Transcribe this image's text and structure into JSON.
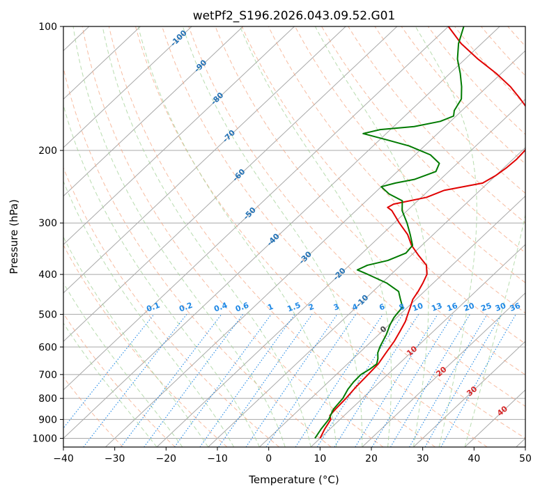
{
  "chart_data": {
    "type": "line",
    "title": "wetPf2_S196.2026.043.09.52.G01",
    "xlabel": "Temperature (°C)",
    "ylabel": "Pressure (hPa)",
    "xlim": [
      -40,
      50
    ],
    "ylim_pressure": [
      1050,
      100
    ],
    "log_y": true,
    "grid": true,
    "x_ticks": [
      -40,
      -30,
      -20,
      -10,
      0,
      10,
      20,
      30,
      40,
      50
    ],
    "y_ticks": [
      100,
      200,
      300,
      400,
      500,
      600,
      700,
      800,
      900,
      1000
    ],
    "skew_deg_per_decade": 85,
    "isotherm_labels": [
      -100,
      -90,
      -80,
      -70,
      -60,
      -50,
      -40,
      -30,
      -20,
      -10
    ],
    "isotherm_labels_text": [
      "-100",
      "-90",
      "-80",
      "-70",
      "-60",
      "-50",
      "-40",
      "-30",
      "-20",
      "-10"
    ],
    "mixing_ratio_labels": [
      0.1,
      0.2,
      0.4,
      0.6,
      1,
      1.5,
      2,
      3,
      4,
      6,
      8,
      10,
      13,
      16,
      20,
      25,
      30,
      36
    ],
    "mixing_ratio_labels_text": [
      "0.1",
      "0.2",
      "0.4",
      "0.6",
      "1",
      "1.5",
      "2",
      "3",
      "4",
      "6",
      "8",
      "10",
      "13",
      "16",
      "20",
      "25",
      "30",
      "36"
    ],
    "dry_adiabat_labels": [
      0,
      10,
      20,
      30,
      40
    ],
    "dry_adiabat_labels_text": [
      "0",
      "10",
      "20",
      "30",
      "40"
    ],
    "series": [
      {
        "role": "temperature",
        "color": "#e00000",
        "points": [
          {
            "p": 1000,
            "t": 10.0
          },
          {
            "p": 950,
            "t": 9.0
          },
          {
            "p": 900,
            "t": 8.2
          },
          {
            "p": 880,
            "t": 7.2
          },
          {
            "p": 850,
            "t": 7.0
          },
          {
            "p": 800,
            "t": 6.8
          },
          {
            "p": 750,
            "t": 6.4
          },
          {
            "p": 700,
            "t": 6.2
          },
          {
            "p": 660,
            "t": 6.0
          },
          {
            "p": 620,
            "t": 5.2
          },
          {
            "p": 580,
            "t": 4.4
          },
          {
            "p": 550,
            "t": 3.5
          },
          {
            "p": 520,
            "t": 2.5
          },
          {
            "p": 500,
            "t": 1.5
          },
          {
            "p": 480,
            "t": 0.5
          },
          {
            "p": 460,
            "t": -0.6
          },
          {
            "p": 440,
            "t": -1.2
          },
          {
            "p": 420,
            "t": -2.0
          },
          {
            "p": 400,
            "t": -3.0
          },
          {
            "p": 380,
            "t": -5.0
          },
          {
            "p": 360,
            "t": -8.5
          },
          {
            "p": 340,
            "t": -12.0
          },
          {
            "p": 320,
            "t": -15.0
          },
          {
            "p": 300,
            "t": -19.0
          },
          {
            "p": 280,
            "t": -23.0
          },
          {
            "p": 275,
            "t": -24.5
          },
          {
            "p": 270,
            "t": -24.0
          },
          {
            "p": 260,
            "t": -19.0
          },
          {
            "p": 250,
            "t": -17.0
          },
          {
            "p": 240,
            "t": -11.0
          },
          {
            "p": 230,
            "t": -10.0
          },
          {
            "p": 220,
            "t": -9.5
          },
          {
            "p": 210,
            "t": -9.3
          },
          {
            "p": 200,
            "t": -9.5
          },
          {
            "p": 190,
            "t": -10.5
          },
          {
            "p": 180,
            "t": -12.0
          },
          {
            "p": 170,
            "t": -14.0
          },
          {
            "p": 160,
            "t": -17.0
          },
          {
            "p": 150,
            "t": -21.0
          },
          {
            "p": 140,
            "t": -25.5
          },
          {
            "p": 130,
            "t": -31.0
          },
          {
            "p": 120,
            "t": -37.5
          },
          {
            "p": 110,
            "t": -44.0
          },
          {
            "p": 100,
            "t": -50.0
          }
        ]
      },
      {
        "role": "dewpoint",
        "color": "#007a00",
        "points": [
          {
            "p": 1000,
            "t": 9.0
          },
          {
            "p": 950,
            "t": 8.3
          },
          {
            "p": 900,
            "t": 7.8
          },
          {
            "p": 850,
            "t": 6.6
          },
          {
            "p": 800,
            "t": 6.2
          },
          {
            "p": 760,
            "t": 5.3
          },
          {
            "p": 730,
            "t": 4.9
          },
          {
            "p": 700,
            "t": 4.8
          },
          {
            "p": 680,
            "t": 5.4
          },
          {
            "p": 660,
            "t": 5.7
          },
          {
            "p": 640,
            "t": 4.8
          },
          {
            "p": 620,
            "t": 3.6
          },
          {
            "p": 600,
            "t": 2.8
          },
          {
            "p": 560,
            "t": 1.5
          },
          {
            "p": 530,
            "t": 0.2
          },
          {
            "p": 510,
            "t": -0.5
          },
          {
            "p": 500,
            "t": -0.7
          },
          {
            "p": 480,
            "t": -1.0
          },
          {
            "p": 470,
            "t": -2.0
          },
          {
            "p": 460,
            "t": -3.0
          },
          {
            "p": 440,
            "t": -5.0
          },
          {
            "p": 420,
            "t": -9.0
          },
          {
            "p": 400,
            "t": -14.5
          },
          {
            "p": 390,
            "t": -17.5
          },
          {
            "p": 380,
            "t": -16.5
          },
          {
            "p": 370,
            "t": -13.5
          },
          {
            "p": 355,
            "t": -11.5
          },
          {
            "p": 340,
            "t": -11.8
          },
          {
            "p": 320,
            "t": -14.5
          },
          {
            "p": 300,
            "t": -17.5
          },
          {
            "p": 280,
            "t": -21.0
          },
          {
            "p": 265,
            "t": -23.0
          },
          {
            "p": 255,
            "t": -27.0
          },
          {
            "p": 245,
            "t": -30.0
          },
          {
            "p": 240,
            "t": -28.0
          },
          {
            "p": 235,
            "t": -25.0
          },
          {
            "p": 225,
            "t": -22.5
          },
          {
            "p": 215,
            "t": -23.5
          },
          {
            "p": 205,
            "t": -27.0
          },
          {
            "p": 195,
            "t": -33.0
          },
          {
            "p": 188,
            "t": -39.0
          },
          {
            "p": 182,
            "t": -44.5
          },
          {
            "p": 178,
            "t": -42.0
          },
          {
            "p": 175,
            "t": -36.0
          },
          {
            "p": 170,
            "t": -32.0
          },
          {
            "p": 165,
            "t": -30.5
          },
          {
            "p": 160,
            "t": -31.5
          },
          {
            "p": 150,
            "t": -32.5
          },
          {
            "p": 140,
            "t": -35.0
          },
          {
            "p": 130,
            "t": -38.0
          },
          {
            "p": 120,
            "t": -41.5
          },
          {
            "p": 110,
            "t": -44.5
          },
          {
            "p": 100,
            "t": -47.0
          }
        ]
      }
    ]
  },
  "colors": {
    "isotherm": "#2271b5",
    "isotherm_line": "#a8a8a8",
    "grid": "#a8a8a8",
    "dry_adiabat": "#f4a582",
    "moist_adiabat": "#a6d39b",
    "mixing_ratio": "#1f88e5",
    "dry_label": "#d62728",
    "theta_label": "#444444"
  }
}
